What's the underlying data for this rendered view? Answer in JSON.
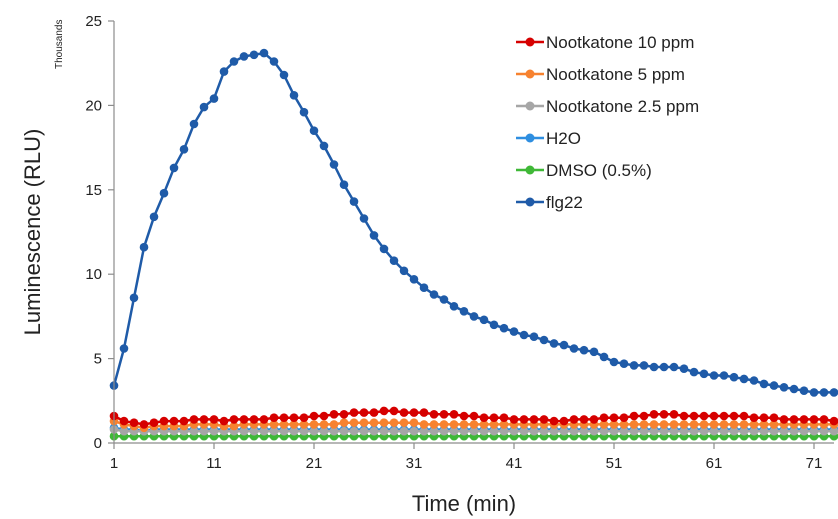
{
  "chart_data": {
    "type": "line",
    "xlabel": "Time (min)",
    "ylabel": "Luminescence (RLU)",
    "y_units_label": "Thousands",
    "x_ticks": [
      1,
      11,
      21,
      31,
      41,
      51,
      61,
      71
    ],
    "y_ticks": [
      0,
      5,
      10,
      15,
      20,
      25
    ],
    "xlim": [
      1,
      73
    ],
    "ylim": [
      0,
      25
    ],
    "grid": false,
    "legend_position": "top-right",
    "x": [
      1,
      2,
      3,
      4,
      5,
      6,
      7,
      8,
      9,
      10,
      11,
      12,
      13,
      14,
      15,
      16,
      17,
      18,
      19,
      20,
      21,
      22,
      23,
      24,
      25,
      26,
      27,
      28,
      29,
      30,
      31,
      32,
      33,
      34,
      35,
      36,
      37,
      38,
      39,
      40,
      41,
      42,
      43,
      44,
      45,
      46,
      47,
      48,
      49,
      50,
      51,
      52,
      53,
      54,
      55,
      56,
      57,
      58,
      59,
      60,
      61,
      62,
      63,
      64,
      65,
      66,
      67,
      68,
      69,
      70,
      71,
      72,
      73
    ],
    "series": [
      {
        "name": "Nootkatone 10 ppm",
        "color": "#d60000",
        "values": [
          1.6,
          1.3,
          1.2,
          1.1,
          1.2,
          1.3,
          1.3,
          1.3,
          1.4,
          1.4,
          1.4,
          1.3,
          1.4,
          1.4,
          1.4,
          1.4,
          1.5,
          1.5,
          1.5,
          1.5,
          1.6,
          1.6,
          1.7,
          1.7,
          1.8,
          1.8,
          1.8,
          1.9,
          1.9,
          1.8,
          1.8,
          1.8,
          1.7,
          1.7,
          1.7,
          1.6,
          1.6,
          1.5,
          1.5,
          1.5,
          1.4,
          1.4,
          1.4,
          1.4,
          1.3,
          1.3,
          1.4,
          1.4,
          1.4,
          1.5,
          1.5,
          1.5,
          1.6,
          1.6,
          1.7,
          1.7,
          1.7,
          1.6,
          1.6,
          1.6,
          1.6,
          1.6,
          1.6,
          1.6,
          1.5,
          1.5,
          1.5,
          1.4,
          1.4,
          1.4,
          1.4,
          1.4,
          1.3
        ]
      },
      {
        "name": "Nootkatone 5 ppm",
        "color": "#f7822f",
        "values": [
          1.3,
          1.1,
          1.0,
          0.9,
          1.0,
          1.0,
          1.0,
          1.0,
          1.1,
          1.1,
          1.1,
          1.0,
          1.0,
          1.1,
          1.1,
          1.1,
          1.1,
          1.1,
          1.1,
          1.1,
          1.1,
          1.1,
          1.1,
          1.2,
          1.2,
          1.2,
          1.2,
          1.2,
          1.2,
          1.2,
          1.2,
          1.1,
          1.1,
          1.1,
          1.1,
          1.1,
          1.1,
          1.1,
          1.1,
          1.1,
          1.1,
          1.1,
          1.1,
          1.1,
          1.1,
          1.1,
          1.1,
          1.1,
          1.1,
          1.1,
          1.1,
          1.1,
          1.1,
          1.1,
          1.1,
          1.1,
          1.1,
          1.1,
          1.1,
          1.1,
          1.1,
          1.1,
          1.1,
          1.1,
          1.1,
          1.1,
          1.1,
          1.1,
          1.1,
          1.1,
          1.1,
          1.1,
          1.1
        ]
      },
      {
        "name": "Nootkatone 2.5 ppm",
        "color": "#a6a6a6",
        "values": [
          0.8,
          0.7,
          0.7,
          0.7,
          0.7,
          0.7,
          0.7,
          0.7,
          0.7,
          0.7,
          0.7,
          0.7,
          0.7,
          0.7,
          0.7,
          0.7,
          0.7,
          0.7,
          0.7,
          0.7,
          0.7,
          0.7,
          0.7,
          0.7,
          0.7,
          0.7,
          0.7,
          0.7,
          0.7,
          0.7,
          0.7,
          0.7,
          0.7,
          0.7,
          0.7,
          0.7,
          0.7,
          0.7,
          0.7,
          0.7,
          0.7,
          0.7,
          0.7,
          0.7,
          0.7,
          0.7,
          0.7,
          0.7,
          0.7,
          0.7,
          0.7,
          0.7,
          0.7,
          0.7,
          0.7,
          0.7,
          0.7,
          0.7,
          0.7,
          0.7,
          0.7,
          0.7,
          0.7,
          0.7,
          0.7,
          0.7,
          0.7,
          0.7,
          0.7,
          0.7,
          0.7,
          0.7,
          0.7
        ]
      },
      {
        "name": "H2O",
        "color": "#2e8ee0",
        "values": [
          0.9,
          0.8,
          0.8,
          0.7,
          0.8,
          0.8,
          0.8,
          0.8,
          0.8,
          0.8,
          0.8,
          0.8,
          0.8,
          0.8,
          0.8,
          0.8,
          0.8,
          0.8,
          0.8,
          0.8,
          0.8,
          0.8,
          0.8,
          0.8,
          0.8,
          0.8,
          0.8,
          0.8,
          0.8,
          0.8,
          0.8,
          0.8,
          0.8,
          0.8,
          0.8,
          0.8,
          0.8,
          0.8,
          0.8,
          0.8,
          0.8,
          0.8,
          0.8,
          0.8,
          0.8,
          0.8,
          0.8,
          0.8,
          0.8,
          0.8,
          0.8,
          0.8,
          0.8,
          0.8,
          0.8,
          0.8,
          0.8,
          0.8,
          0.8,
          0.8,
          0.8,
          0.8,
          0.8,
          0.8,
          0.8,
          0.8,
          0.8,
          0.8,
          0.8,
          0.8,
          0.8,
          0.8,
          0.8
        ]
      },
      {
        "name": "DMSO (0.5%)",
        "color": "#3fb837",
        "values": [
          0.4,
          0.4,
          0.4,
          0.4,
          0.4,
          0.4,
          0.4,
          0.4,
          0.4,
          0.4,
          0.4,
          0.4,
          0.4,
          0.4,
          0.4,
          0.4,
          0.4,
          0.4,
          0.4,
          0.4,
          0.4,
          0.4,
          0.4,
          0.4,
          0.4,
          0.4,
          0.4,
          0.4,
          0.4,
          0.4,
          0.4,
          0.4,
          0.4,
          0.4,
          0.4,
          0.4,
          0.4,
          0.4,
          0.4,
          0.4,
          0.4,
          0.4,
          0.4,
          0.4,
          0.4,
          0.4,
          0.4,
          0.4,
          0.4,
          0.4,
          0.4,
          0.4,
          0.4,
          0.4,
          0.4,
          0.4,
          0.4,
          0.4,
          0.4,
          0.4,
          0.4,
          0.4,
          0.4,
          0.4,
          0.4,
          0.4,
          0.4,
          0.4,
          0.4,
          0.4,
          0.4,
          0.4,
          0.4
        ]
      },
      {
        "name": "flg22",
        "color": "#1f5ba8",
        "values": [
          3.4,
          5.6,
          8.6,
          11.6,
          13.4,
          14.8,
          16.3,
          17.4,
          18.9,
          19.9,
          20.4,
          22.0,
          22.6,
          22.9,
          23.0,
          23.1,
          22.6,
          21.8,
          20.6,
          19.6,
          18.5,
          17.6,
          16.5,
          15.3,
          14.3,
          13.3,
          12.3,
          11.5,
          10.8,
          10.2,
          9.7,
          9.2,
          8.8,
          8.5,
          8.1,
          7.8,
          7.5,
          7.3,
          7.0,
          6.8,
          6.6,
          6.4,
          6.3,
          6.1,
          5.9,
          5.8,
          5.6,
          5.5,
          5.4,
          5.1,
          4.8,
          4.7,
          4.6,
          4.6,
          4.5,
          4.5,
          4.5,
          4.4,
          4.2,
          4.1,
          4.0,
          4.0,
          3.9,
          3.8,
          3.7,
          3.5,
          3.4,
          3.3,
          3.2,
          3.1,
          3.0,
          3.0,
          3.0
        ]
      }
    ]
  }
}
